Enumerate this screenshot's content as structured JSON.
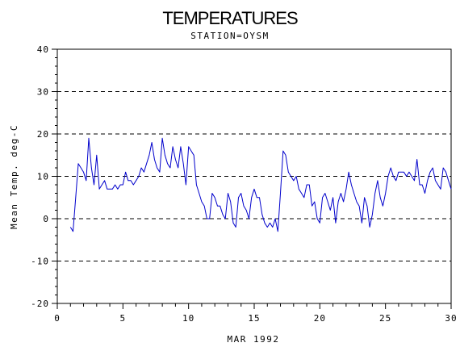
{
  "chart_data": {
    "type": "line",
    "title": "TEMPERATURES",
    "subtitle": "STATION=OYSM",
    "xlabel": "MAR 1992",
    "ylabel": "Mean Temp. deg-C",
    "xlim": [
      0,
      30
    ],
    "ylim": [
      -20,
      40
    ],
    "x_ticks": [
      0,
      5,
      10,
      15,
      20,
      25,
      30
    ],
    "y_ticks": [
      -20,
      -10,
      0,
      10,
      20,
      30,
      40
    ],
    "x_tick_labels": [
      "0",
      "5",
      "10",
      "15",
      "20",
      "25",
      "30"
    ],
    "y_tick_labels": [
      "-20",
      "-10",
      "0",
      "10",
      "20",
      "30",
      "40"
    ],
    "grid": "dashed horizontal lines at y ticks",
    "line_color": "#0000cc",
    "series": [
      {
        "x": [
          1.0,
          1.2,
          1.4,
          1.6,
          1.8,
          2.0,
          2.2,
          2.4,
          2.6,
          2.8,
          3.0,
          3.2,
          3.4,
          3.6,
          3.8,
          4.0,
          4.2,
          4.4,
          4.6,
          4.8,
          5.0,
          5.2,
          5.4,
          5.6,
          5.8,
          6.0,
          6.2,
          6.4,
          6.6,
          6.8,
          7.0,
          7.2,
          7.4,
          7.6,
          7.8,
          8.0,
          8.2,
          8.4,
          8.6,
          8.8,
          9.0,
          9.2,
          9.4,
          9.6,
          9.8,
          10.0,
          10.2,
          10.4,
          10.6,
          10.8,
          11.0,
          11.2,
          11.4,
          11.6,
          11.8,
          12.0,
          12.2,
          12.4,
          12.6,
          12.8,
          13.0,
          13.2,
          13.4,
          13.6,
          13.8,
          14.0,
          14.2,
          14.4,
          14.6,
          14.8,
          15.0,
          15.2,
          15.4,
          15.6,
          15.8,
          16.0,
          16.2,
          16.4,
          16.6,
          16.8,
          17.0,
          17.2,
          17.4,
          17.6,
          17.8,
          18.0,
          18.2,
          18.4,
          18.6,
          18.8,
          19.0,
          19.2,
          19.4,
          19.6,
          19.8,
          20.0,
          20.2,
          20.4,
          20.6,
          20.8,
          21.0,
          21.2,
          21.4,
          21.6,
          21.8,
          22.0,
          22.2,
          22.4,
          22.6,
          22.8,
          23.0,
          23.2,
          23.4,
          23.6,
          23.8,
          24.0,
          24.2,
          24.4,
          24.6,
          24.8,
          25.0,
          25.2,
          25.4,
          25.6,
          25.8,
          26.0,
          26.2,
          26.4,
          26.6,
          26.8,
          27.0,
          27.2,
          27.4,
          27.6,
          27.8,
          28.0,
          28.2,
          28.4,
          28.6,
          28.8,
          29.0,
          29.2,
          29.4,
          29.6,
          29.8,
          30.0
        ],
        "y": [
          -2,
          -3,
          5,
          13,
          12,
          11,
          9,
          19,
          12,
          8,
          15,
          7,
          8,
          9,
          7,
          7,
          7,
          8,
          7,
          8,
          8,
          11,
          9,
          9,
          8,
          9,
          10,
          12,
          11,
          13,
          15,
          18,
          14,
          12,
          11,
          19,
          15,
          13,
          12,
          17,
          14,
          12,
          17,
          13,
          8,
          17,
          16,
          15,
          8,
          6,
          4,
          3,
          0,
          0,
          6,
          5,
          3,
          3,
          1,
          0,
          6,
          4,
          -1,
          -2,
          5,
          6,
          3,
          2,
          0,
          5,
          7,
          5,
          5,
          1,
          -1,
          -2,
          -1,
          -2,
          0,
          -3,
          6,
          16,
          15,
          11,
          10,
          9,
          10,
          7,
          6,
          5,
          8,
          8,
          3,
          4,
          0,
          -1,
          5,
          6,
          4,
          2,
          5,
          -1,
          4,
          6,
          4,
          7,
          11,
          8,
          6,
          4,
          3,
          -1,
          5,
          3,
          -2,
          1,
          6,
          9,
          5,
          3,
          6,
          10,
          12,
          10,
          9,
          11,
          11,
          11,
          10,
          11,
          10,
          9,
          14,
          8,
          8,
          6,
          9,
          11,
          12,
          9,
          8,
          7,
          12,
          11,
          9,
          7
        ]
      }
    ]
  }
}
